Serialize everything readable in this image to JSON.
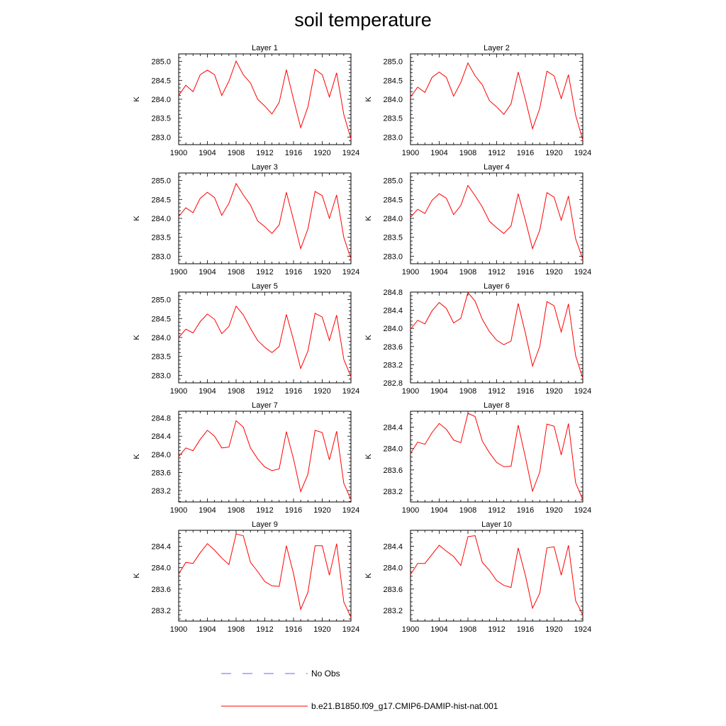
{
  "page": {
    "title": "soil temperature"
  },
  "legend": [
    {
      "label": "No Obs",
      "color": "#6666ff",
      "style": "dashed"
    },
    {
      "label": "b.e21.B1850.f09_g17.CMIP6-DAMIP-hist-nat.001",
      "color": "#ff0000",
      "style": "solid"
    }
  ],
  "chart_data": [
    {
      "type": "line",
      "title": "Layer 1",
      "ylabel": "K",
      "xlim": [
        1900,
        1924
      ],
      "ylim": [
        282.8,
        285.2
      ],
      "xticks": [
        1900,
        1904,
        1908,
        1912,
        1916,
        1920,
        1924
      ],
      "yticks": [
        "283.0",
        "283.5",
        "284.0",
        "284.5",
        "285.0"
      ],
      "grid": false,
      "x": [
        1900,
        1901,
        1902,
        1903,
        1904,
        1905,
        1906,
        1907,
        1908,
        1909,
        1910,
        1911,
        1912,
        1913,
        1914,
        1915,
        1916,
        1917,
        1918,
        1919,
        1920,
        1921,
        1922,
        1923,
        1924
      ],
      "series": [
        {
          "name": "b.e21.B1850.f09_g17.CMIP6-DAMIP-hist-nat.001",
          "color": "#ff0000",
          "values": [
            284.1,
            284.37,
            284.2,
            284.65,
            284.77,
            284.65,
            284.1,
            284.48,
            285.01,
            284.65,
            284.43,
            284.0,
            283.82,
            283.61,
            283.92,
            284.78,
            284.0,
            283.25,
            283.8,
            284.79,
            284.65,
            284.06,
            284.7,
            283.6,
            282.95
          ]
        }
      ]
    },
    {
      "type": "line",
      "title": "Layer 2",
      "ylabel": "K",
      "xlim": [
        1900,
        1924
      ],
      "ylim": [
        282.8,
        285.2
      ],
      "xticks": [
        1900,
        1904,
        1908,
        1912,
        1916,
        1920,
        1924
      ],
      "yticks": [
        "283.0",
        "283.5",
        "284.0",
        "284.5",
        "285.0"
      ],
      "grid": false,
      "x": [
        1900,
        1901,
        1902,
        1903,
        1904,
        1905,
        1906,
        1907,
        1908,
        1909,
        1910,
        1911,
        1912,
        1913,
        1914,
        1915,
        1916,
        1917,
        1918,
        1919,
        1920,
        1921,
        1922,
        1923,
        1924
      ],
      "series": [
        {
          "name": "b.e21.B1850.f09_g17.CMIP6-DAMIP-hist-nat.001",
          "color": "#ff0000",
          "values": [
            284.06,
            284.32,
            284.18,
            284.58,
            284.72,
            284.58,
            284.08,
            284.44,
            284.96,
            284.62,
            284.38,
            283.96,
            283.8,
            283.6,
            283.88,
            284.72,
            284.0,
            283.22,
            283.76,
            284.74,
            284.62,
            284.02,
            284.65,
            283.58,
            282.92
          ]
        }
      ]
    },
    {
      "type": "line",
      "title": "Layer 3",
      "ylabel": "K",
      "xlim": [
        1900,
        1924
      ],
      "ylim": [
        282.8,
        285.2
      ],
      "xticks": [
        1900,
        1904,
        1908,
        1912,
        1916,
        1920,
        1924
      ],
      "yticks": [
        "283.0",
        "283.5",
        "284.0",
        "284.5",
        "285.0"
      ],
      "grid": false,
      "x": [
        1900,
        1901,
        1902,
        1903,
        1904,
        1905,
        1906,
        1907,
        1908,
        1909,
        1910,
        1911,
        1912,
        1913,
        1914,
        1915,
        1916,
        1917,
        1918,
        1919,
        1920,
        1921,
        1922,
        1923,
        1924
      ],
      "series": [
        {
          "name": "b.e21.B1850.f09_g17.CMIP6-DAMIP-hist-nat.001",
          "color": "#ff0000",
          "values": [
            284.05,
            284.28,
            284.15,
            284.53,
            284.69,
            284.55,
            284.08,
            284.4,
            284.92,
            284.62,
            284.35,
            283.93,
            283.78,
            283.6,
            283.83,
            284.69,
            283.96,
            283.2,
            283.72,
            284.71,
            284.6,
            284.0,
            284.62,
            283.5,
            282.93
          ]
        }
      ]
    },
    {
      "type": "line",
      "title": "Layer 4",
      "ylabel": "K",
      "xlim": [
        1900,
        1924
      ],
      "ylim": [
        282.8,
        285.2
      ],
      "xticks": [
        1900,
        1904,
        1908,
        1912,
        1916,
        1920,
        1924
      ],
      "yticks": [
        "283.0",
        "283.5",
        "284.0",
        "284.5",
        "285.0"
      ],
      "grid": false,
      "x": [
        1900,
        1901,
        1902,
        1903,
        1904,
        1905,
        1906,
        1907,
        1908,
        1909,
        1910,
        1911,
        1912,
        1913,
        1914,
        1915,
        1916,
        1917,
        1918,
        1919,
        1920,
        1921,
        1922,
        1923,
        1924
      ],
      "series": [
        {
          "name": "b.e21.B1850.f09_g17.CMIP6-DAMIP-hist-nat.001",
          "color": "#ff0000",
          "values": [
            284.03,
            284.24,
            284.13,
            284.48,
            284.65,
            284.53,
            284.1,
            284.34,
            284.87,
            284.6,
            284.3,
            283.92,
            283.75,
            283.6,
            283.8,
            284.65,
            283.95,
            283.2,
            283.68,
            284.68,
            284.56,
            283.95,
            284.59,
            283.46,
            282.92
          ]
        }
      ]
    },
    {
      "type": "line",
      "title": "Layer 5",
      "ylabel": "K",
      "xlim": [
        1900,
        1924
      ],
      "ylim": [
        282.8,
        285.2
      ],
      "xticks": [
        1900,
        1904,
        1908,
        1912,
        1916,
        1920,
        1924
      ],
      "yticks": [
        "283.0",
        "283.5",
        "284.0",
        "284.5",
        "285.0"
      ],
      "grid": false,
      "x": [
        1900,
        1901,
        1902,
        1903,
        1904,
        1905,
        1906,
        1907,
        1908,
        1909,
        1910,
        1911,
        1912,
        1913,
        1914,
        1915,
        1916,
        1917,
        1918,
        1919,
        1920,
        1921,
        1922,
        1923,
        1924
      ],
      "series": [
        {
          "name": "b.e21.B1850.f09_g17.CMIP6-DAMIP-hist-nat.001",
          "color": "#ff0000",
          "values": [
            284.0,
            284.22,
            284.12,
            284.42,
            284.62,
            284.48,
            284.1,
            284.29,
            284.83,
            284.6,
            284.24,
            283.92,
            283.74,
            283.6,
            283.76,
            284.61,
            283.93,
            283.18,
            283.64,
            284.64,
            284.54,
            283.92,
            284.59,
            283.42,
            282.96
          ]
        }
      ]
    },
    {
      "type": "line",
      "title": "Layer 6",
      "ylabel": "K",
      "xlim": [
        1900,
        1924
      ],
      "ylim": [
        282.8,
        284.8
      ],
      "xticks": [
        1900,
        1904,
        1908,
        1912,
        1916,
        1920,
        1924
      ],
      "yticks": [
        "282.8",
        "283.2",
        "283.6",
        "284.0",
        "284.4",
        "284.8"
      ],
      "grid": false,
      "x": [
        1900,
        1901,
        1902,
        1903,
        1904,
        1905,
        1906,
        1907,
        1908,
        1909,
        1910,
        1911,
        1912,
        1913,
        1914,
        1915,
        1916,
        1917,
        1918,
        1919,
        1920,
        1921,
        1922,
        1923,
        1924
      ],
      "series": [
        {
          "name": "b.e21.B1850.f09_g17.CMIP6-DAMIP-hist-nat.001",
          "color": "#ff0000",
          "values": [
            283.98,
            284.18,
            284.1,
            284.39,
            284.57,
            284.44,
            284.12,
            284.22,
            284.79,
            284.6,
            284.2,
            283.93,
            283.74,
            283.64,
            283.72,
            284.55,
            283.9,
            283.17,
            283.6,
            284.59,
            284.5,
            283.92,
            284.54,
            283.4,
            282.9
          ]
        }
      ]
    },
    {
      "type": "line",
      "title": "Layer 7",
      "ylabel": "K",
      "xlim": [
        1900,
        1924
      ],
      "ylim": [
        282.95,
        284.95
      ],
      "xticks": [
        1900,
        1904,
        1908,
        1912,
        1916,
        1920,
        1924
      ],
      "yticks": [
        "283.2",
        "283.6",
        "284.0",
        "284.4",
        "284.8"
      ],
      "grid": false,
      "x": [
        1900,
        1901,
        1902,
        1903,
        1904,
        1905,
        1906,
        1907,
        1908,
        1909,
        1910,
        1911,
        1912,
        1913,
        1914,
        1915,
        1916,
        1917,
        1918,
        1919,
        1920,
        1921,
        1922,
        1923,
        1924
      ],
      "series": [
        {
          "name": "b.e21.B1850.f09_g17.CMIP6-DAMIP-hist-nat.001",
          "color": "#ff0000",
          "values": [
            283.95,
            284.14,
            284.08,
            284.33,
            284.53,
            284.4,
            284.14,
            284.16,
            284.74,
            284.6,
            284.14,
            283.9,
            283.72,
            283.64,
            283.68,
            284.5,
            283.9,
            283.18,
            283.56,
            284.53,
            284.48,
            283.88,
            284.51,
            283.36,
            283.0
          ]
        }
      ]
    },
    {
      "type": "line",
      "title": "Layer 8",
      "ylabel": "K",
      "xlim": [
        1900,
        1924
      ],
      "ylim": [
        283.0,
        284.7
      ],
      "xticks": [
        1900,
        1904,
        1908,
        1912,
        1916,
        1920,
        1924
      ],
      "yticks": [
        "283.2",
        "283.6",
        "284.0",
        "284.4"
      ],
      "grid": false,
      "x": [
        1900,
        1901,
        1902,
        1903,
        1904,
        1905,
        1906,
        1907,
        1908,
        1909,
        1910,
        1911,
        1912,
        1913,
        1914,
        1915,
        1916,
        1917,
        1918,
        1919,
        1920,
        1921,
        1922,
        1923,
        1924
      ],
      "series": [
        {
          "name": "b.e21.B1850.f09_g17.CMIP6-DAMIP-hist-nat.001",
          "color": "#ff0000",
          "values": [
            283.91,
            284.12,
            284.08,
            284.3,
            284.47,
            284.36,
            284.16,
            284.11,
            284.66,
            284.6,
            284.14,
            283.92,
            283.74,
            283.66,
            283.67,
            284.44,
            283.84,
            283.2,
            283.56,
            284.46,
            284.42,
            283.88,
            284.47,
            283.36,
            283.04
          ]
        }
      ]
    },
    {
      "type": "line",
      "title": "Layer 9",
      "ylabel": "K",
      "xlim": [
        1900,
        1924
      ],
      "ylim": [
        283.0,
        284.7
      ],
      "xticks": [
        1900,
        1904,
        1908,
        1912,
        1916,
        1920,
        1924
      ],
      "yticks": [
        "283.2",
        "283.6",
        "284.0",
        "284.4"
      ],
      "grid": false,
      "x": [
        1900,
        1901,
        1902,
        1903,
        1904,
        1905,
        1906,
        1907,
        1908,
        1909,
        1910,
        1911,
        1912,
        1913,
        1914,
        1915,
        1916,
        1917,
        1918,
        1919,
        1920,
        1921,
        1922,
        1923,
        1924
      ],
      "series": [
        {
          "name": "b.e21.B1850.f09_g17.CMIP6-DAMIP-hist-nat.001",
          "color": "#ff0000",
          "values": [
            283.88,
            284.1,
            284.08,
            284.28,
            284.45,
            284.33,
            284.18,
            284.06,
            284.63,
            284.6,
            284.1,
            283.93,
            283.74,
            283.66,
            283.65,
            284.41,
            283.89,
            283.22,
            283.54,
            284.41,
            284.41,
            283.86,
            284.45,
            283.36,
            283.07
          ]
        }
      ]
    },
    {
      "type": "line",
      "title": "Layer 10",
      "ylabel": "K",
      "xlim": [
        1900,
        1924
      ],
      "ylim": [
        283.0,
        284.7
      ],
      "xticks": [
        1900,
        1904,
        1908,
        1912,
        1916,
        1920,
        1924
      ],
      "yticks": [
        "283.2",
        "283.6",
        "284.0",
        "284.4"
      ],
      "grid": false,
      "x": [
        1900,
        1901,
        1902,
        1903,
        1904,
        1905,
        1906,
        1907,
        1908,
        1909,
        1910,
        1911,
        1912,
        1913,
        1914,
        1915,
        1916,
        1917,
        1918,
        1919,
        1920,
        1921,
        1922,
        1923,
        1924
      ],
      "series": [
        {
          "name": "b.e21.B1850.f09_g17.CMIP6-DAMIP-hist-nat.001",
          "color": "#ff0000",
          "values": [
            283.87,
            284.08,
            284.08,
            284.25,
            284.42,
            284.31,
            284.21,
            284.04,
            284.58,
            284.6,
            284.1,
            283.95,
            283.76,
            283.67,
            283.63,
            284.37,
            283.86,
            283.24,
            283.52,
            284.37,
            284.39,
            283.86,
            284.42,
            283.38,
            283.12
          ]
        }
      ]
    }
  ]
}
